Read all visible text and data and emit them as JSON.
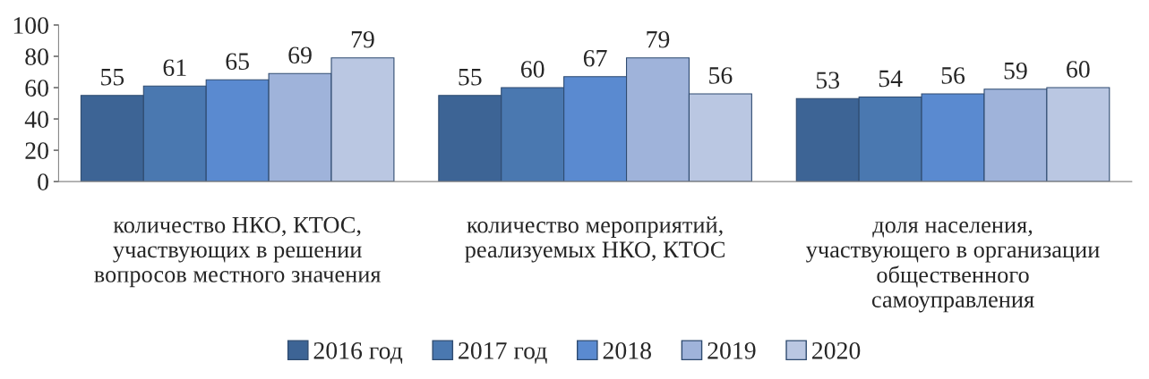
{
  "chart_data": {
    "type": "bar",
    "categories": [
      "количество НКО, КТОС,\nучаствующих в решении\nвопросов местного значения",
      "количество мероприятий,\nреализуемых НКО, КТОС",
      "доля населения,\nучаствующего в организации\nобщественного\nсамоуправления"
    ],
    "series": [
      {
        "name": "2016 год",
        "color": "#3d6495",
        "values": [
          55,
          55,
          53
        ]
      },
      {
        "name": "2017 год",
        "color": "#4a78b0",
        "values": [
          61,
          60,
          54
        ]
      },
      {
        "name": "2018",
        "color": "#5a8ad0",
        "values": [
          65,
          67,
          56
        ]
      },
      {
        "name": "2019",
        "color": "#9fb3da",
        "values": [
          69,
          79,
          59
        ]
      },
      {
        "name": "2020",
        "color": "#bac7e2",
        "values": [
          79,
          56,
          60
        ]
      }
    ],
    "ylim": [
      0,
      100
    ],
    "yticks": [
      0,
      20,
      40,
      60,
      80,
      100
    ],
    "data_labels": true,
    "grid": false,
    "legend": "bottom"
  }
}
